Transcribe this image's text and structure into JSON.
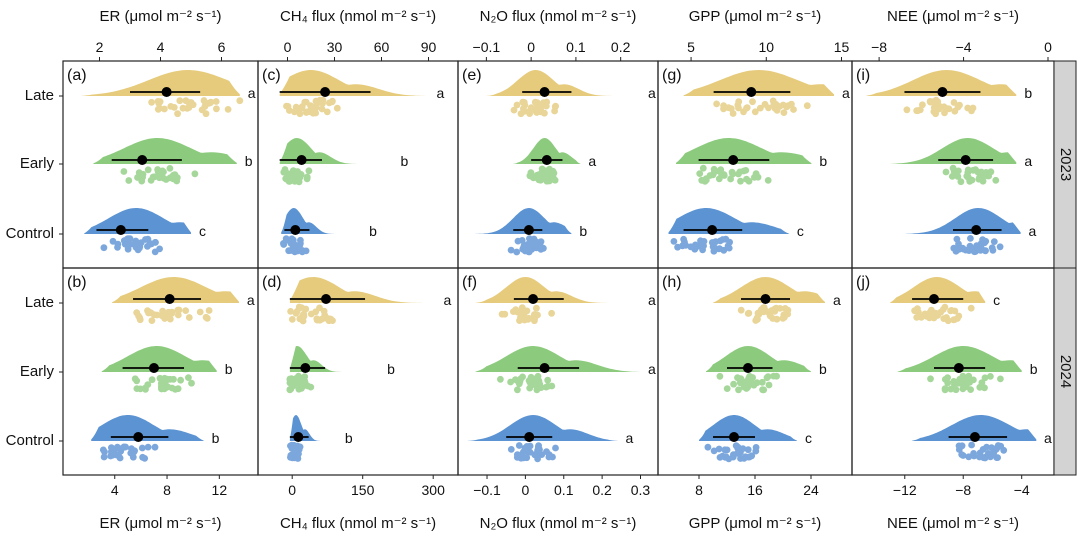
{
  "figure": {
    "year_strips": [
      "2023",
      "2024"
    ],
    "row_labels": [
      "Late",
      "Early",
      "Control"
    ],
    "group_colors": {
      "Late": "#E6CB7C",
      "Early": "#8CCB7D",
      "Control": "#5B93D3"
    },
    "point_colors": {
      "Late": "#E9D597",
      "Early": "#A6D79A",
      "Control": "#7CA7DC"
    }
  },
  "chart_data": [
    {
      "type": "raincloud",
      "panel_label": "(a)",
      "year": "2023",
      "column": "ER",
      "axis_label_top": "ER (μmol m⁻² s⁻¹)",
      "axis_position": "top",
      "xlim": [
        1.0,
        7.0
      ],
      "ticks": [
        2,
        4,
        6
      ],
      "groups": [
        {
          "name": "Late",
          "mean": 4.2,
          "ci": [
            3.0,
            5.3
          ],
          "letter": "a",
          "range": [
            1.4,
            6.6
          ],
          "peak": 4.9,
          "spread": 1.3
        },
        {
          "name": "Early",
          "mean": 3.4,
          "ci": [
            2.4,
            4.7
          ],
          "letter": "b",
          "range": [
            1.8,
            6.5
          ],
          "peak": 3.9,
          "spread": 1.1
        },
        {
          "name": "Control",
          "mean": 2.7,
          "ci": [
            1.9,
            3.6
          ],
          "letter": "c",
          "range": [
            1.5,
            5.0
          ],
          "peak": 3.2,
          "spread": 0.9
        }
      ]
    },
    {
      "type": "raincloud",
      "panel_label": "(b)",
      "year": "2024",
      "column": "ER",
      "axis_label_bottom": "ER (μmol m⁻² s⁻¹)",
      "axis_position": "bottom",
      "xlim": [
        0.5,
        14.5
      ],
      "ticks": [
        4,
        8,
        12
      ],
      "groups": [
        {
          "name": "Late",
          "mean": 8.2,
          "ci": [
            5.4,
            10.6
          ],
          "letter": "a",
          "range": [
            3.8,
            13.5
          ],
          "peak": 8.5,
          "spread": 2.5
        },
        {
          "name": "Early",
          "mean": 7.0,
          "ci": [
            4.6,
            9.3
          ],
          "letter": "b",
          "range": [
            3.0,
            11.8
          ],
          "peak": 7.2,
          "spread": 2.2
        },
        {
          "name": "Control",
          "mean": 5.8,
          "ci": [
            3.7,
            8.1
          ],
          "letter": "b",
          "range": [
            2.2,
            10.8
          ],
          "peak": 5.0,
          "spread": 2.0
        }
      ]
    },
    {
      "type": "raincloud",
      "panel_label": "(c)",
      "year": "2023",
      "column": "CH4",
      "axis_label_top": "CH₄ flux (nmol m⁻² s⁻¹)",
      "axis_position": "top",
      "xlim": [
        -15,
        105
      ],
      "ticks": [
        0,
        30,
        60,
        90
      ],
      "groups": [
        {
          "name": "Late",
          "mean": 24,
          "ci": [
            -5,
            53
          ],
          "letter": "a",
          "range": [
            -5,
            90
          ],
          "peak": 15,
          "spread": 18
        },
        {
          "name": "Early",
          "mean": 9,
          "ci": [
            -5,
            22
          ],
          "letter": "b",
          "range": [
            -5,
            67
          ],
          "peak": 6,
          "spread": 9
        },
        {
          "name": "Control",
          "mean": 5,
          "ci": [
            -2,
            14
          ],
          "letter": "b",
          "range": [
            -4,
            47
          ],
          "peak": 4,
          "spread": 6
        }
      ]
    },
    {
      "type": "raincloud",
      "panel_label": "(d)",
      "year": "2024",
      "column": "CH4",
      "axis_label_bottom": "CH₄ flux (nmol m⁻² s⁻¹)",
      "axis_position": "bottom",
      "xlim": [
        -60,
        340
      ],
      "ticks": [
        0,
        150,
        300
      ],
      "groups": [
        {
          "name": "Late",
          "mean": 72,
          "ci": [
            -5,
            155
          ],
          "letter": "a",
          "range": [
            -5,
            305
          ],
          "peak": 45,
          "spread": 55
        },
        {
          "name": "Early",
          "mean": 28,
          "ci": [
            -5,
            70
          ],
          "letter": "b",
          "range": [
            -5,
            185
          ],
          "peak": 10,
          "spread": 22
        },
        {
          "name": "Control",
          "mean": 13,
          "ci": [
            -5,
            35
          ],
          "letter": "b",
          "range": [
            -5,
            95
          ],
          "peak": 8,
          "spread": 12
        }
      ]
    },
    {
      "type": "raincloud",
      "panel_label": "(e)",
      "year": "2023",
      "column": "N2O",
      "axis_label_top": "N₂O flux (nmol m⁻² s⁻¹)",
      "axis_position": "top",
      "xlim": [
        -0.15,
        0.27
      ],
      "ticks": [
        -0.1,
        0.0,
        0.1,
        0.2
      ],
      "groups": [
        {
          "name": "Late",
          "mean": 0.03,
          "ci": [
            -0.02,
            0.09
          ],
          "letter": "a",
          "range": [
            -0.1,
            0.26
          ],
          "peak": 0.01,
          "spread": 0.04
        },
        {
          "name": "Early",
          "mean": 0.035,
          "ci": [
            0.0,
            0.07
          ],
          "letter": "a",
          "range": [
            -0.04,
            0.11
          ],
          "peak": 0.03,
          "spread": 0.025
        },
        {
          "name": "Control",
          "mean": -0.005,
          "ci": [
            -0.04,
            0.025
          ],
          "letter": "b",
          "range": [
            -0.13,
            0.09
          ],
          "peak": -0.005,
          "spread": 0.035
        }
      ]
    },
    {
      "type": "raincloud",
      "panel_label": "(f)",
      "year": "2024",
      "column": "N2O",
      "axis_label_bottom": "N₂O flux (nmol m⁻² s⁻¹)",
      "axis_position": "bottom",
      "xlim": [
        -0.16,
        0.33
      ],
      "ticks": [
        -0.1,
        0.0,
        0.1,
        0.2,
        0.3
      ],
      "groups": [
        {
          "name": "Late",
          "mean": 0.02,
          "ci": [
            -0.03,
            0.1
          ],
          "letter": "a",
          "range": [
            -0.13,
            0.31
          ],
          "peak": 0.0,
          "spread": 0.05
        },
        {
          "name": "Early",
          "mean": 0.05,
          "ci": [
            -0.02,
            0.14
          ],
          "letter": "a",
          "range": [
            -0.13,
            0.3
          ],
          "peak": 0.02,
          "spread": 0.07
        },
        {
          "name": "Control",
          "mean": 0.01,
          "ci": [
            -0.05,
            0.07
          ],
          "letter": "a",
          "range": [
            -0.15,
            0.24
          ],
          "peak": 0.02,
          "spread": 0.06
        }
      ]
    },
    {
      "type": "raincloud",
      "panel_label": "(g)",
      "year": "2023",
      "column": "GPP",
      "axis_label_top": "GPP (μmol m⁻² s⁻¹)",
      "axis_position": "top",
      "xlim": [
        3.2,
        15.3
      ],
      "ticks": [
        5,
        10,
        15
      ],
      "groups": [
        {
          "name": "Late",
          "mean": 9.0,
          "ci": [
            6.5,
            11.6
          ],
          "letter": "a",
          "range": [
            4.5,
            14.5
          ],
          "peak": 9.5,
          "spread": 2.6
        },
        {
          "name": "Early",
          "mean": 7.8,
          "ci": [
            5.5,
            10.2
          ],
          "letter": "b",
          "range": [
            4.0,
            13.0
          ],
          "peak": 7.5,
          "spread": 2.2
        },
        {
          "name": "Control",
          "mean": 6.4,
          "ci": [
            4.5,
            8.4
          ],
          "letter": "c",
          "range": [
            3.5,
            11.5
          ],
          "peak": 6.0,
          "spread": 1.9
        }
      ]
    },
    {
      "type": "raincloud",
      "panel_label": "(h)",
      "year": "2024",
      "column": "GPP",
      "axis_label_bottom": "GPP (μmol m⁻² s⁻¹)",
      "axis_position": "bottom",
      "xlim": [
        3.0,
        29.0
      ],
      "ticks": [
        8,
        16,
        24
      ],
      "groups": [
        {
          "name": "Late",
          "mean": 17.5,
          "ci": [
            14.0,
            21.0
          ],
          "letter": "a",
          "range": [
            10.0,
            26.0
          ],
          "peak": 17.5,
          "spread": 3.5
        },
        {
          "name": "Early",
          "mean": 15.0,
          "ci": [
            12.0,
            18.5
          ],
          "letter": "b",
          "range": [
            9.0,
            24.0
          ],
          "peak": 15.0,
          "spread": 3.2
        },
        {
          "name": "Control",
          "mean": 13.0,
          "ci": [
            10.0,
            16.0
          ],
          "letter": "c",
          "range": [
            8.0,
            22.0
          ],
          "peak": 13.0,
          "spread": 3.0
        }
      ]
    },
    {
      "type": "raincloud",
      "panel_label": "(i)",
      "year": "2023",
      "column": "NEE",
      "axis_label_top": "NEE (μmol m⁻² s⁻¹)",
      "axis_position": "top",
      "xlim": [
        -9.0,
        0.0
      ],
      "ticks": [
        -8,
        -4,
        0
      ],
      "groups": [
        {
          "name": "Late",
          "mean": -5.0,
          "ci": [
            -6.8,
            -3.2
          ],
          "letter": "b",
          "range": [
            -8.6,
            -1.5
          ],
          "peak": -4.8,
          "spread": 1.6
        },
        {
          "name": "Early",
          "mean": -3.9,
          "ci": [
            -5.2,
            -2.6
          ],
          "letter": "a",
          "range": [
            -7.5,
            -1.5
          ],
          "peak": -3.8,
          "spread": 1.2
        },
        {
          "name": "Control",
          "mean": -3.4,
          "ci": [
            -4.5,
            -2.2
          ],
          "letter": "a",
          "range": [
            -6.8,
            -1.3
          ],
          "peak": -3.3,
          "spread": 1.1
        }
      ]
    },
    {
      "type": "raincloud",
      "panel_label": "(j)",
      "year": "2024",
      "column": "NEE",
      "axis_label_bottom": "NEE (μmol m⁻² s⁻¹)",
      "axis_position": "bottom",
      "xlim": [
        -15.2,
        -2.2
      ],
      "ticks": [
        -12,
        -8,
        -4
      ],
      "groups": [
        {
          "name": "Late",
          "mean": -10.0,
          "ci": [
            -11.5,
            -8.0
          ],
          "letter": "c",
          "range": [
            -13.0,
            -6.5
          ],
          "peak": -9.8,
          "spread": 1.6
        },
        {
          "name": "Early",
          "mean": -8.3,
          "ci": [
            -10.0,
            -6.5
          ],
          "letter": "b",
          "range": [
            -12.5,
            -4.0
          ],
          "peak": -8.0,
          "spread": 2.0
        },
        {
          "name": "Control",
          "mean": -7.2,
          "ci": [
            -9.0,
            -5.0
          ],
          "letter": "a",
          "range": [
            -11.5,
            -3.0
          ],
          "peak": -6.8,
          "spread": 2.0
        }
      ]
    }
  ]
}
